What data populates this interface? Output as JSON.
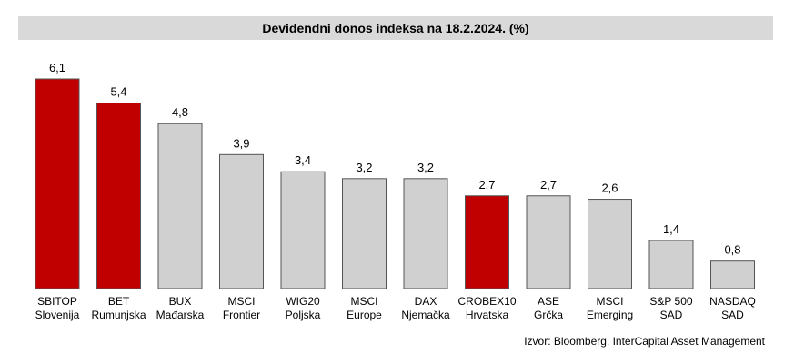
{
  "chart_data": {
    "type": "bar",
    "title": "Devidendni donos indeksa na 18.2.2024. (%)",
    "categories": [
      [
        "SBITOP",
        "Slovenija"
      ],
      [
        "BET",
        "Rumunjska"
      ],
      [
        "BUX",
        "Mađarska"
      ],
      [
        "MSCI",
        "Frontier"
      ],
      [
        "WIG20",
        "Poljska"
      ],
      [
        "MSCI",
        "Europe"
      ],
      [
        "DAX",
        "Njemačka"
      ],
      [
        "CROBEX10",
        "Hrvatska"
      ],
      [
        "ASE",
        "Grčka"
      ],
      [
        "MSCI",
        "Emerging"
      ],
      [
        "S&P 500",
        "SAD"
      ],
      [
        "NASDAQ",
        "SAD"
      ]
    ],
    "values": [
      6.1,
      5.4,
      4.8,
      3.9,
      3.4,
      3.2,
      3.2,
      2.7,
      2.7,
      2.6,
      1.4,
      0.8
    ],
    "value_labels": [
      "6,1",
      "5,4",
      "4,8",
      "3,9",
      "3,4",
      "3,2",
      "3,2",
      "2,7",
      "2,7",
      "2,6",
      "1,4",
      "0,8"
    ],
    "highlighted": [
      true,
      true,
      false,
      false,
      false,
      false,
      false,
      true,
      false,
      false,
      false,
      false
    ],
    "colors": {
      "highlight": "#c00000",
      "default": "#d0d0d0",
      "border": "#555555"
    },
    "ylim": [
      0,
      6.1
    ],
    "xlabel": "",
    "ylabel": "",
    "grid": false,
    "legend": "none"
  },
  "source_text": "Izvor: Bloomberg, InterCapital Asset Management"
}
